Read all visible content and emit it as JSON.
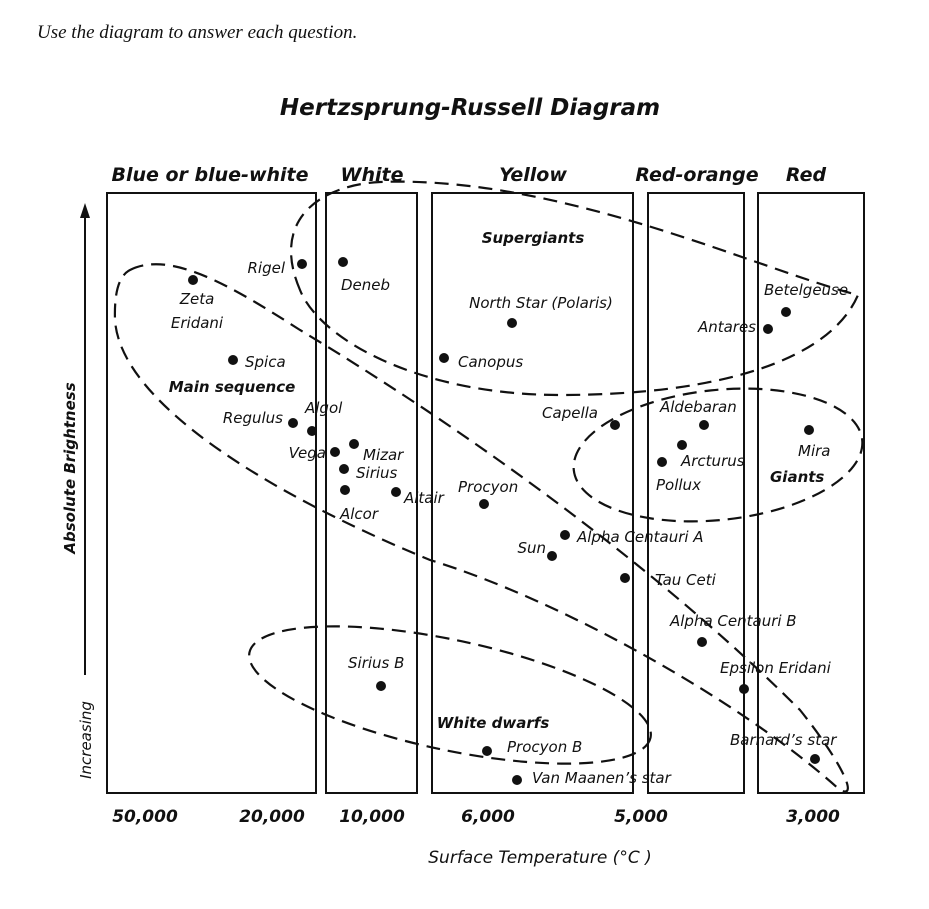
{
  "instruction": "Use the diagram to answer each question.",
  "title": "Hertzsprung-Russell Diagram",
  "color_bands": [
    "Blue or blue-white",
    "White",
    "Yellow",
    "Red-orange",
    "Red"
  ],
  "y_axis": {
    "label": "Absolute Brightness",
    "direction": "Increasing"
  },
  "x_axis": {
    "label": "Surface Temperature (°C )",
    "temperatures": [
      "50,000",
      "20,000",
      "10,000",
      "6,000",
      "5,000",
      "3,000"
    ]
  },
  "regions": [
    "Supergiants",
    "Main sequence",
    "Giants",
    "White dwarfs"
  ],
  "stars": [
    {
      "label": [
        "Zeta",
        "Eridani"
      ]
    },
    {
      "label": [
        "Rigel"
      ]
    },
    {
      "label": [
        "Deneb"
      ]
    },
    {
      "label": [
        "North Star (Polaris)"
      ]
    },
    {
      "label": [
        "Canopus"
      ]
    },
    {
      "label": [
        "Spica"
      ]
    },
    {
      "label": [
        "Regulus"
      ]
    },
    {
      "label": [
        "Algol"
      ]
    },
    {
      "label": [
        "Vega"
      ]
    },
    {
      "label": [
        "Mizar"
      ]
    },
    {
      "label": [
        "Sirius"
      ]
    },
    {
      "label": [
        "Alcor"
      ]
    },
    {
      "label": [
        "Altair"
      ]
    },
    {
      "label": [
        "Procyon"
      ]
    },
    {
      "label": [
        "Capella"
      ]
    },
    {
      "label": [
        "Aldebaran"
      ]
    },
    {
      "label": [
        "Arcturus"
      ]
    },
    {
      "label": [
        "Pollux"
      ]
    },
    {
      "label": [
        "Mira"
      ]
    },
    {
      "label": [
        "Betelgeuse"
      ]
    },
    {
      "label": [
        "Antares"
      ]
    },
    {
      "label": [
        "Alpha Centauri A"
      ]
    },
    {
      "label": [
        "Sun"
      ]
    },
    {
      "label": [
        "Tau Ceti"
      ]
    },
    {
      "label": [
        "Alpha Centauri B"
      ]
    },
    {
      "label": [
        "Epsilon Eridani"
      ]
    },
    {
      "label": [
        "Sirius B"
      ]
    },
    {
      "label": [
        "Procyon B"
      ]
    },
    {
      "label": [
        "Van Maanen’s star"
      ]
    },
    {
      "label": [
        "Barnard’s star"
      ]
    }
  ]
}
